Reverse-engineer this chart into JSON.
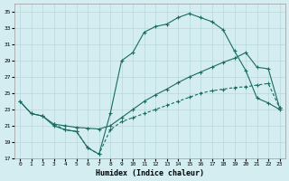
{
  "xlabel": "Humidex (Indice chaleur)",
  "bg_color": "#d4edf0",
  "grid_color": "#b8d8dc",
  "line_color": "#1a6b62",
  "xlim": [
    -0.5,
    23.5
  ],
  "ylim": [
    17,
    36
  ],
  "yticks": [
    17,
    19,
    21,
    23,
    25,
    27,
    29,
    31,
    33,
    35
  ],
  "xticks": [
    0,
    1,
    2,
    3,
    4,
    5,
    6,
    7,
    8,
    9,
    10,
    11,
    12,
    13,
    14,
    15,
    16,
    17,
    18,
    19,
    20,
    21,
    22,
    23
  ],
  "line1_x": [
    0,
    1,
    2,
    3,
    4,
    5,
    6,
    7,
    8,
    9,
    10,
    11,
    12,
    13,
    14,
    15,
    16,
    17,
    18,
    19,
    20,
    21,
    22,
    23
  ],
  "line1_y": [
    24.0,
    22.5,
    22.2,
    21.0,
    20.5,
    20.3,
    18.3,
    17.5,
    22.5,
    29.0,
    30.0,
    32.5,
    33.2,
    33.5,
    34.3,
    34.8,
    34.3,
    33.8,
    32.8,
    30.2,
    27.8,
    24.4,
    23.8,
    23.0
  ],
  "line1_style": "-",
  "line1_marker": "+",
  "line2_x": [
    0,
    1,
    2,
    3,
    4,
    5,
    6,
    7,
    8,
    9,
    10,
    11,
    12,
    13,
    14,
    15,
    16,
    17,
    18,
    19,
    20,
    21,
    22,
    23
  ],
  "line2_y": [
    24.0,
    22.5,
    22.2,
    21.2,
    21.0,
    20.8,
    20.7,
    20.6,
    21.0,
    22.0,
    23.0,
    24.0,
    24.8,
    25.5,
    26.3,
    27.0,
    27.6,
    28.2,
    28.8,
    29.3,
    30.0,
    28.2,
    28.0,
    23.2
  ],
  "line2_style": "-",
  "line2_marker": "+",
  "line3_x": [
    3,
    4,
    5,
    6,
    7,
    8,
    9,
    10,
    11,
    12,
    13,
    14,
    15,
    16,
    17,
    18,
    19,
    20,
    21,
    22,
    23
  ],
  "line3_y": [
    21.2,
    20.5,
    20.3,
    18.3,
    17.5,
    20.5,
    21.5,
    22.0,
    22.5,
    23.0,
    23.5,
    24.0,
    24.5,
    25.0,
    25.3,
    25.5,
    25.7,
    25.8,
    26.0,
    26.2,
    23.2
  ],
  "line3_style": "--",
  "line3_marker": "+"
}
